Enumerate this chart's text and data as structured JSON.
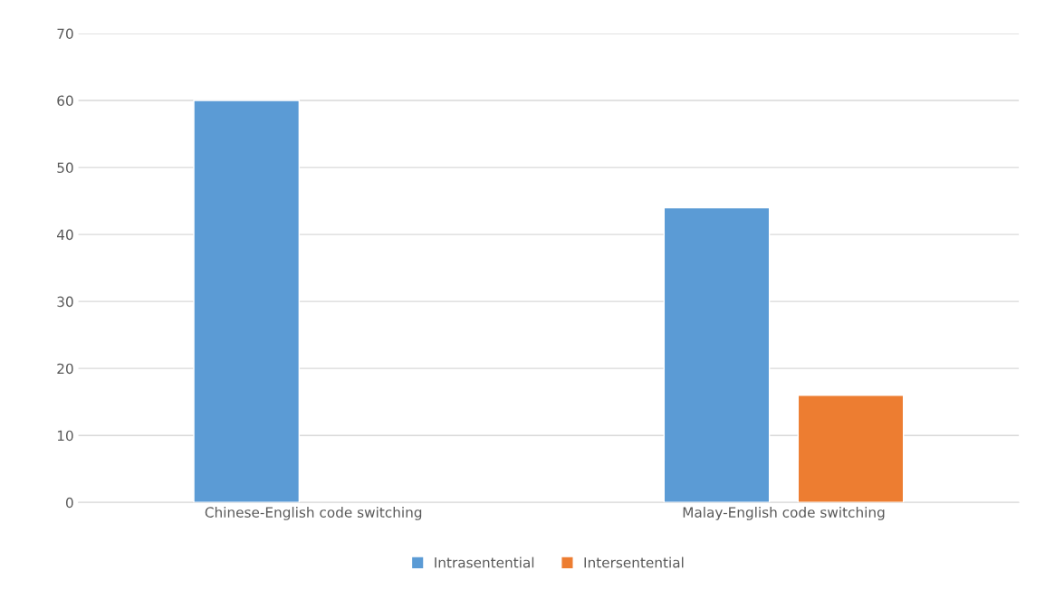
{
  "chart_data": {
    "type": "bar",
    "categories": [
      "Chinese-English code switching",
      "Malay-English code switching"
    ],
    "series": [
      {
        "name": "Intrasentential",
        "color": "#5b9bd5",
        "values": [
          60,
          44
        ]
      },
      {
        "name": "Intersentential",
        "color": "#ed7d31",
        "values": [
          null,
          16
        ]
      }
    ],
    "ylim": [
      0,
      70
    ],
    "yticks": [
      0,
      10,
      20,
      30,
      40,
      50,
      60,
      70
    ],
    "grid": "y",
    "legend": "bottom"
  }
}
